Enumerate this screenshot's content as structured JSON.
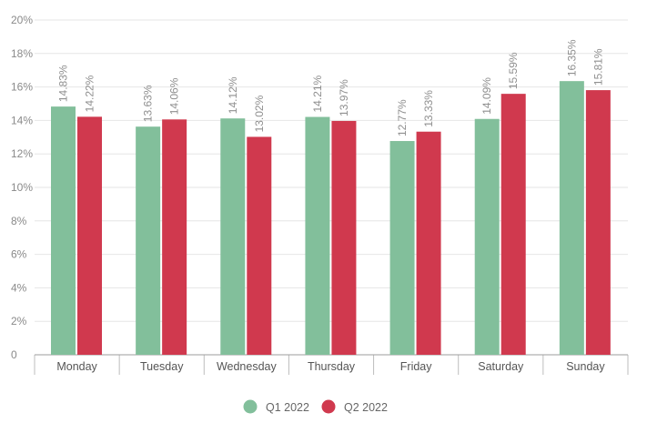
{
  "chart_data": {
    "type": "bar",
    "title": "",
    "xlabel": "",
    "ylabel": "",
    "categories": [
      "Monday",
      "Tuesday",
      "Wednesday",
      "Thursday",
      "Friday",
      "Saturday",
      "Sunday"
    ],
    "series": [
      {
        "name": "Q1 2022",
        "color": "#82bf9b",
        "values": [
          14.83,
          13.63,
          14.12,
          14.21,
          12.77,
          14.09,
          16.35
        ],
        "labels": [
          "14.83%",
          "13.63%",
          "14.12%",
          "14.21%",
          "12.77%",
          "14.09%",
          "16.35%"
        ]
      },
      {
        "name": "Q2 2022",
        "color": "#d0394e",
        "values": [
          14.22,
          14.06,
          13.02,
          13.97,
          13.33,
          15.59,
          15.81
        ],
        "labels": [
          "14.22%",
          "14.06%",
          "13.02%",
          "13.97%",
          "13.33%",
          "15.59%",
          "15.81%"
        ]
      }
    ],
    "ylim": [
      0,
      20
    ],
    "yticks": [
      0,
      2,
      4,
      6,
      8,
      10,
      12,
      14,
      16,
      18,
      20
    ],
    "ytick_labels": [
      "0",
      "2%",
      "4%",
      "6%",
      "8%",
      "10%",
      "12%",
      "14%",
      "16%",
      "18%",
      "20%"
    ],
    "grid": true,
    "legend": "bottom-center"
  }
}
